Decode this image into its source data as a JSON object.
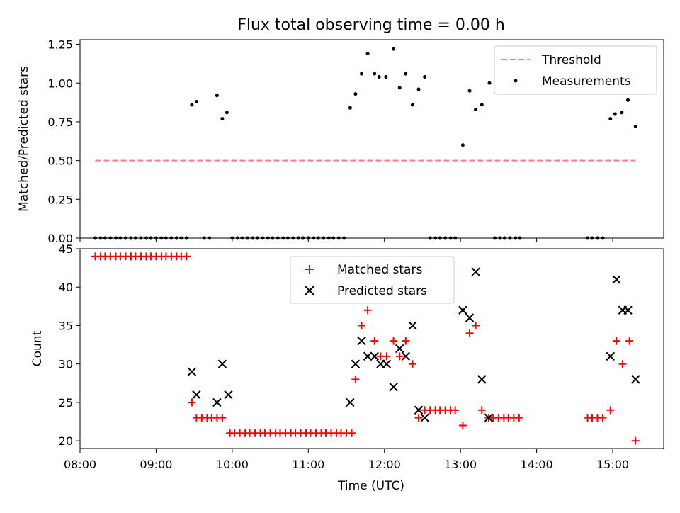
{
  "title": "Flux total observing time = 0.00 h",
  "chart_data": [
    {
      "type": "scatter",
      "ylabel": "Matched/Predicted stars",
      "xlim": [
        8.0,
        15.67
      ],
      "ylim": [
        0,
        1.28
      ],
      "x_ticks": [
        "08:00",
        "09:00",
        "10:00",
        "11:00",
        "12:00",
        "13:00",
        "14:00",
        "15:00"
      ],
      "y_ticks": [
        "0.00",
        "0.25",
        "0.50",
        "0.75",
        "1.00",
        "1.25"
      ],
      "legend": "top-right",
      "legend_items": [
        "Threshold",
        "Measurements"
      ],
      "threshold": {
        "name": "Threshold",
        "value": 0.5,
        "x_range": [
          8.2,
          15.3
        ],
        "color": "#ff7b7b"
      },
      "series": [
        {
          "name": "Measurements",
          "color": "#000000",
          "points": [
            [
              8.2,
              0
            ],
            [
              8.27,
              0
            ],
            [
              8.33,
              0
            ],
            [
              8.4,
              0
            ],
            [
              8.47,
              0
            ],
            [
              8.53,
              0
            ],
            [
              8.6,
              0
            ],
            [
              8.67,
              0
            ],
            [
              8.73,
              0
            ],
            [
              8.8,
              0
            ],
            [
              8.87,
              0
            ],
            [
              8.93,
              0
            ],
            [
              9.0,
              0
            ],
            [
              9.07,
              0
            ],
            [
              9.13,
              0
            ],
            [
              9.2,
              0
            ],
            [
              9.27,
              0
            ],
            [
              9.33,
              0
            ],
            [
              9.4,
              0
            ],
            [
              9.47,
              0.86
            ],
            [
              9.53,
              0.88
            ],
            [
              9.63,
              0
            ],
            [
              9.7,
              0
            ],
            [
              9.8,
              0.92
            ],
            [
              9.87,
              0.77
            ],
            [
              9.93,
              0.81
            ],
            [
              10.0,
              0
            ],
            [
              10.07,
              0
            ],
            [
              10.13,
              0
            ],
            [
              10.2,
              0
            ],
            [
              10.27,
              0
            ],
            [
              10.33,
              0
            ],
            [
              10.4,
              0
            ],
            [
              10.47,
              0
            ],
            [
              10.53,
              0
            ],
            [
              10.6,
              0
            ],
            [
              10.67,
              0
            ],
            [
              10.73,
              0
            ],
            [
              10.8,
              0
            ],
            [
              10.87,
              0
            ],
            [
              10.93,
              0
            ],
            [
              11.0,
              0
            ],
            [
              11.07,
              0
            ],
            [
              11.13,
              0
            ],
            [
              11.2,
              0
            ],
            [
              11.27,
              0
            ],
            [
              11.33,
              0
            ],
            [
              11.4,
              0
            ],
            [
              11.47,
              0
            ],
            [
              11.55,
              0.84
            ],
            [
              11.62,
              0.93
            ],
            [
              11.7,
              1.06
            ],
            [
              11.78,
              1.19
            ],
            [
              11.87,
              1.06
            ],
            [
              11.93,
              1.04
            ],
            [
              12.02,
              1.04
            ],
            [
              12.12,
              1.22
            ],
            [
              12.2,
              0.97
            ],
            [
              12.28,
              1.06
            ],
            [
              12.37,
              0.86
            ],
            [
              12.45,
              0.96
            ],
            [
              12.53,
              1.04
            ],
            [
              12.6,
              0
            ],
            [
              12.67,
              0
            ],
            [
              12.73,
              0
            ],
            [
              12.8,
              0
            ],
            [
              12.87,
              0
            ],
            [
              12.93,
              0
            ],
            [
              13.03,
              0.6
            ],
            [
              13.12,
              0.95
            ],
            [
              13.2,
              0.83
            ],
            [
              13.28,
              0.86
            ],
            [
              13.38,
              1.0
            ],
            [
              13.45,
              0
            ],
            [
              13.52,
              0
            ],
            [
              13.58,
              0
            ],
            [
              13.65,
              0
            ],
            [
              13.72,
              0
            ],
            [
              13.78,
              0
            ],
            [
              14.67,
              0
            ],
            [
              14.73,
              0
            ],
            [
              14.8,
              0
            ],
            [
              14.87,
              0
            ],
            [
              14.97,
              0.77
            ],
            [
              15.03,
              0.8
            ],
            [
              15.12,
              0.81
            ],
            [
              15.2,
              0.89
            ],
            [
              15.3,
              0.72
            ]
          ]
        }
      ]
    },
    {
      "type": "scatter",
      "xlabel": "Time (UTC)",
      "ylabel": "Count",
      "xlim": [
        8.0,
        15.67
      ],
      "ylim": [
        19,
        45
      ],
      "x_ticks": [
        "08:00",
        "09:00",
        "10:00",
        "11:00",
        "12:00",
        "13:00",
        "14:00",
        "15:00"
      ],
      "y_ticks": [
        "20",
        "25",
        "30",
        "35",
        "40",
        "45"
      ],
      "legend": "upper center",
      "legend_items": [
        "Matched stars",
        "Predicted stars"
      ],
      "series": [
        {
          "name": "Matched stars",
          "marker": "+",
          "color": "#ff0000",
          "points": [
            [
              8.2,
              44
            ],
            [
              8.27,
              44
            ],
            [
              8.33,
              44
            ],
            [
              8.4,
              44
            ],
            [
              8.47,
              44
            ],
            [
              8.53,
              44
            ],
            [
              8.6,
              44
            ],
            [
              8.67,
              44
            ],
            [
              8.73,
              44
            ],
            [
              8.8,
              44
            ],
            [
              8.87,
              44
            ],
            [
              8.93,
              44
            ],
            [
              9.0,
              44
            ],
            [
              9.07,
              44
            ],
            [
              9.13,
              44
            ],
            [
              9.2,
              44
            ],
            [
              9.27,
              44
            ],
            [
              9.33,
              44
            ],
            [
              9.4,
              44
            ],
            [
              9.47,
              25
            ],
            [
              9.53,
              23
            ],
            [
              9.6,
              23
            ],
            [
              9.67,
              23
            ],
            [
              9.73,
              23
            ],
            [
              9.8,
              23
            ],
            [
              9.87,
              23
            ],
            [
              9.97,
              21
            ],
            [
              10.03,
              21
            ],
            [
              10.1,
              21
            ],
            [
              10.17,
              21
            ],
            [
              10.23,
              21
            ],
            [
              10.3,
              21
            ],
            [
              10.37,
              21
            ],
            [
              10.43,
              21
            ],
            [
              10.5,
              21
            ],
            [
              10.57,
              21
            ],
            [
              10.63,
              21
            ],
            [
              10.7,
              21
            ],
            [
              10.77,
              21
            ],
            [
              10.83,
              21
            ],
            [
              10.9,
              21
            ],
            [
              10.97,
              21
            ],
            [
              11.03,
              21
            ],
            [
              11.1,
              21
            ],
            [
              11.17,
              21
            ],
            [
              11.23,
              21
            ],
            [
              11.3,
              21
            ],
            [
              11.37,
              21
            ],
            [
              11.43,
              21
            ],
            [
              11.5,
              21
            ],
            [
              11.57,
              21
            ],
            [
              11.62,
              28
            ],
            [
              11.7,
              35
            ],
            [
              11.78,
              37
            ],
            [
              11.87,
              33
            ],
            [
              11.95,
              31
            ],
            [
              12.03,
              31
            ],
            [
              12.12,
              33
            ],
            [
              12.2,
              31
            ],
            [
              12.28,
              33
            ],
            [
              12.37,
              30
            ],
            [
              12.45,
              23
            ],
            [
              12.53,
              24
            ],
            [
              12.6,
              24
            ],
            [
              12.67,
              24
            ],
            [
              12.73,
              24
            ],
            [
              12.8,
              24
            ],
            [
              12.87,
              24
            ],
            [
              12.93,
              24
            ],
            [
              13.03,
              22
            ],
            [
              13.12,
              34
            ],
            [
              13.2,
              35
            ],
            [
              13.28,
              24
            ],
            [
              13.37,
              23
            ],
            [
              13.43,
              23
            ],
            [
              13.5,
              23
            ],
            [
              13.57,
              23
            ],
            [
              13.63,
              23
            ],
            [
              13.7,
              23
            ],
            [
              13.77,
              23
            ],
            [
              14.67,
              23
            ],
            [
              14.73,
              23
            ],
            [
              14.8,
              23
            ],
            [
              14.87,
              23
            ],
            [
              14.97,
              24
            ],
            [
              15.05,
              33
            ],
            [
              15.13,
              30
            ],
            [
              15.22,
              33
            ],
            [
              15.3,
              20
            ]
          ]
        },
        {
          "name": "Predicted stars",
          "marker": "x",
          "color": "#000000",
          "points": [
            [
              9.47,
              29
            ],
            [
              9.53,
              26
            ],
            [
              9.8,
              25
            ],
            [
              9.87,
              30
            ],
            [
              9.95,
              26
            ],
            [
              11.55,
              25
            ],
            [
              11.62,
              30
            ],
            [
              11.7,
              33
            ],
            [
              11.78,
              31
            ],
            [
              11.87,
              31
            ],
            [
              11.95,
              30
            ],
            [
              12.03,
              30
            ],
            [
              12.12,
              27
            ],
            [
              12.2,
              32
            ],
            [
              12.28,
              31
            ],
            [
              12.37,
              35
            ],
            [
              12.45,
              24
            ],
            [
              12.53,
              23
            ],
            [
              13.03,
              37
            ],
            [
              13.12,
              36
            ],
            [
              13.2,
              42
            ],
            [
              13.28,
              28
            ],
            [
              13.37,
              23
            ],
            [
              14.97,
              31
            ],
            [
              15.05,
              41
            ],
            [
              15.13,
              37
            ],
            [
              15.2,
              37
            ],
            [
              15.3,
              28
            ]
          ]
        }
      ]
    }
  ]
}
